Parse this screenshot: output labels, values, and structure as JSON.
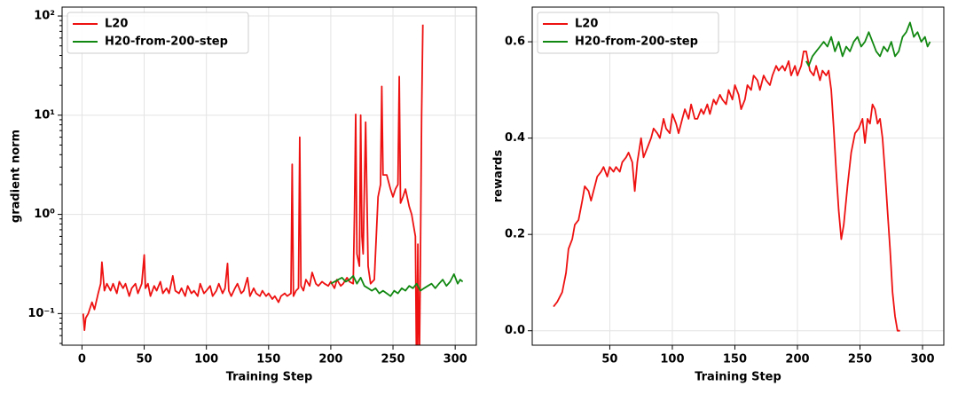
{
  "chart_data": [
    {
      "type": "line",
      "ylabel": "gradient norm",
      "xlabel": "Training Step",
      "log_y": true,
      "grid": true,
      "legend_loc": "upper left",
      "xlim": [
        -16,
        317
      ],
      "xticks": [
        0,
        50,
        100,
        150,
        200,
        250,
        300
      ],
      "ylim": [
        0.048,
        123
      ],
      "yticks": [
        {
          "value": 0.1,
          "label": "10⁻¹"
        },
        {
          "value": 1,
          "label": "10⁰"
        },
        {
          "value": 10,
          "label": "10¹"
        },
        {
          "value": 100,
          "label": "10²"
        }
      ],
      "series": [
        {
          "name": "L20",
          "color": "#ee1111",
          "x": [
            1,
            2,
            3,
            5,
            8,
            10,
            13,
            15,
            16,
            18,
            20,
            23,
            25,
            28,
            30,
            33,
            35,
            38,
            40,
            43,
            45,
            48,
            50,
            51,
            53,
            55,
            58,
            60,
            63,
            65,
            68,
            70,
            73,
            75,
            78,
            80,
            83,
            85,
            88,
            90,
            93,
            95,
            98,
            100,
            103,
            105,
            108,
            110,
            113,
            115,
            117,
            118,
            120,
            123,
            125,
            128,
            130,
            133,
            135,
            138,
            140,
            143,
            145,
            148,
            150,
            153,
            155,
            158,
            160,
            163,
            165,
            168,
            169,
            170,
            172,
            174,
            175,
            176,
            178,
            180,
            183,
            185,
            188,
            190,
            193,
            195,
            198,
            200,
            203,
            205,
            208,
            210,
            213,
            215,
            218,
            219,
            220,
            221,
            223,
            224,
            225,
            226,
            228,
            230,
            232,
            235,
            238,
            240,
            241,
            242,
            245,
            248,
            250,
            252,
            254,
            255,
            256,
            258,
            260,
            263,
            265,
            268,
            269,
            270,
            271,
            272,
            273,
            274
          ],
          "values": [
            0.1,
            0.068,
            0.09,
            0.1,
            0.13,
            0.11,
            0.16,
            0.2,
            0.33,
            0.17,
            0.2,
            0.17,
            0.2,
            0.16,
            0.21,
            0.18,
            0.2,
            0.15,
            0.18,
            0.2,
            0.16,
            0.2,
            0.39,
            0.18,
            0.2,
            0.15,
            0.19,
            0.17,
            0.21,
            0.16,
            0.18,
            0.16,
            0.24,
            0.17,
            0.16,
            0.18,
            0.15,
            0.19,
            0.16,
            0.17,
            0.15,
            0.2,
            0.16,
            0.17,
            0.19,
            0.15,
            0.17,
            0.2,
            0.16,
            0.18,
            0.32,
            0.17,
            0.15,
            0.18,
            0.2,
            0.16,
            0.17,
            0.23,
            0.15,
            0.18,
            0.16,
            0.15,
            0.17,
            0.15,
            0.16,
            0.14,
            0.15,
            0.13,
            0.15,
            0.16,
            0.15,
            0.16,
            3.2,
            0.15,
            0.17,
            0.18,
            6.0,
            0.19,
            0.17,
            0.22,
            0.19,
            0.26,
            0.2,
            0.19,
            0.21,
            0.2,
            0.19,
            0.21,
            0.18,
            0.22,
            0.19,
            0.2,
            0.23,
            0.21,
            0.2,
            1.0,
            10.2,
            0.4,
            0.3,
            10.0,
            0.6,
            0.4,
            8.5,
            0.3,
            0.2,
            0.22,
            1.5,
            2.0,
            19.5,
            2.5,
            2.5,
            1.8,
            1.5,
            1.8,
            2.0,
            24.5,
            1.3,
            1.5,
            1.8,
            1.2,
            1.0,
            0.6,
            0.02,
            0.5,
            0.02,
            0.3,
            10,
            82
          ]
        },
        {
          "name": "H20-from-200-step",
          "color": "#118811",
          "x": [
            200,
            203,
            206,
            209,
            212,
            215,
            218,
            221,
            224,
            227,
            230,
            233,
            236,
            239,
            242,
            245,
            248,
            251,
            254,
            257,
            260,
            263,
            266,
            269,
            272,
            275,
            278,
            281,
            284,
            287,
            290,
            293,
            296,
            299,
            302,
            304,
            306
          ],
          "values": [
            0.2,
            0.21,
            0.22,
            0.23,
            0.21,
            0.22,
            0.24,
            0.2,
            0.23,
            0.19,
            0.18,
            0.17,
            0.18,
            0.16,
            0.17,
            0.16,
            0.15,
            0.17,
            0.16,
            0.18,
            0.17,
            0.19,
            0.18,
            0.2,
            0.17,
            0.18,
            0.19,
            0.2,
            0.18,
            0.2,
            0.22,
            0.19,
            0.21,
            0.25,
            0.2,
            0.22,
            0.21
          ]
        }
      ]
    },
    {
      "type": "line",
      "ylabel": "rewards",
      "xlabel": "Training Step",
      "log_y": false,
      "grid": true,
      "legend_loc": "upper left",
      "xlim": [
        -12,
        317
      ],
      "xticks": [
        50,
        100,
        150,
        200,
        250,
        300
      ],
      "ylim": [
        -0.03,
        0.672
      ],
      "yticks": [
        {
          "value": 0,
          "label": "0.0"
        },
        {
          "value": 0.2,
          "label": "0.2"
        },
        {
          "value": 0.4,
          "label": "0.4"
        },
        {
          "value": 0.6,
          "label": "0.6"
        }
      ],
      "series": [
        {
          "name": "L20",
          "color": "#ee1111",
          "x": [
            5,
            8,
            12,
            15,
            17,
            20,
            22,
            25,
            28,
            30,
            33,
            35,
            38,
            40,
            43,
            45,
            48,
            50,
            53,
            55,
            58,
            60,
            63,
            65,
            68,
            70,
            72,
            75,
            77,
            80,
            83,
            85,
            88,
            90,
            93,
            95,
            98,
            100,
            103,
            105,
            108,
            110,
            113,
            115,
            118,
            120,
            123,
            125,
            128,
            130,
            133,
            135,
            138,
            140,
            143,
            145,
            148,
            150,
            153,
            155,
            158,
            160,
            163,
            165,
            168,
            170,
            173,
            175,
            178,
            180,
            183,
            185,
            188,
            190,
            193,
            195,
            198,
            200,
            203,
            205,
            207,
            210,
            213,
            215,
            218,
            220,
            223,
            225,
            227,
            229,
            231,
            233,
            235,
            237,
            240,
            243,
            246,
            249,
            252,
            254,
            256,
            258,
            260,
            262,
            264,
            266,
            268,
            270,
            272,
            274,
            276,
            278,
            280,
            282
          ],
          "values": [
            0.05,
            0.06,
            0.08,
            0.12,
            0.17,
            0.19,
            0.22,
            0.23,
            0.27,
            0.3,
            0.29,
            0.27,
            0.3,
            0.32,
            0.33,
            0.34,
            0.32,
            0.34,
            0.33,
            0.34,
            0.33,
            0.35,
            0.36,
            0.37,
            0.35,
            0.29,
            0.35,
            0.4,
            0.36,
            0.38,
            0.4,
            0.42,
            0.41,
            0.4,
            0.44,
            0.42,
            0.41,
            0.45,
            0.43,
            0.41,
            0.44,
            0.46,
            0.44,
            0.47,
            0.44,
            0.44,
            0.46,
            0.45,
            0.47,
            0.45,
            0.48,
            0.47,
            0.49,
            0.48,
            0.47,
            0.5,
            0.48,
            0.51,
            0.49,
            0.46,
            0.48,
            0.51,
            0.5,
            0.53,
            0.52,
            0.5,
            0.53,
            0.52,
            0.51,
            0.53,
            0.55,
            0.54,
            0.55,
            0.54,
            0.56,
            0.53,
            0.55,
            0.53,
            0.55,
            0.58,
            0.58,
            0.54,
            0.53,
            0.55,
            0.52,
            0.54,
            0.53,
            0.54,
            0.5,
            0.42,
            0.33,
            0.25,
            0.19,
            0.22,
            0.3,
            0.37,
            0.41,
            0.42,
            0.44,
            0.39,
            0.44,
            0.43,
            0.47,
            0.46,
            0.43,
            0.44,
            0.4,
            0.33,
            0.25,
            0.17,
            0.08,
            0.03,
            0,
            0
          ]
        },
        {
          "name": "H20-from-200-step",
          "color": "#118811",
          "x": [
            207,
            209,
            212,
            215,
            218,
            221,
            224,
            227,
            230,
            233,
            236,
            239,
            242,
            245,
            248,
            251,
            254,
            257,
            260,
            263,
            266,
            269,
            272,
            275,
            278,
            281,
            284,
            287,
            290,
            293,
            296,
            299,
            302,
            304,
            306
          ],
          "values": [
            0.56,
            0.55,
            0.57,
            0.58,
            0.59,
            0.6,
            0.59,
            0.61,
            0.58,
            0.6,
            0.57,
            0.59,
            0.58,
            0.6,
            0.61,
            0.59,
            0.6,
            0.62,
            0.6,
            0.58,
            0.57,
            0.59,
            0.58,
            0.6,
            0.57,
            0.58,
            0.61,
            0.62,
            0.64,
            0.61,
            0.62,
            0.6,
            0.61,
            0.59,
            0.6
          ]
        }
      ]
    }
  ]
}
